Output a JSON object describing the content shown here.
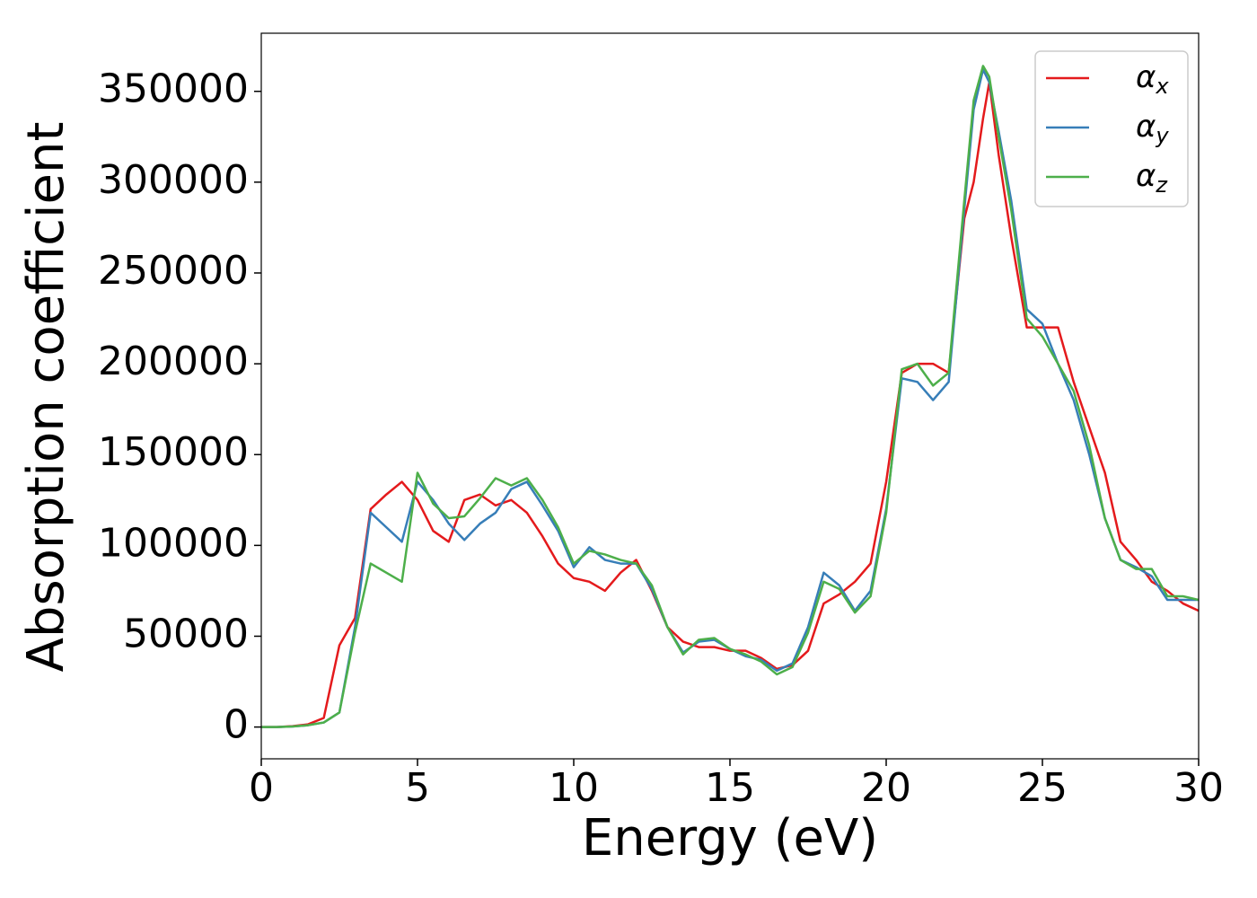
{
  "chart_data": {
    "type": "line",
    "xlabel": "Energy (eV)",
    "ylabel": "Absorption coefficient",
    "x": [
      0,
      0.5,
      1,
      1.5,
      2,
      2.5,
      3,
      3.5,
      4,
      4.5,
      5,
      5.5,
      6,
      6.5,
      7,
      7.5,
      8,
      8.5,
      9,
      9.5,
      10,
      10.5,
      11,
      11.5,
      12,
      12.5,
      13,
      13.5,
      14,
      14.5,
      15,
      15.5,
      16,
      16.5,
      17,
      17.5,
      18,
      18.5,
      19,
      19.5,
      20,
      20.5,
      21,
      21.5,
      22,
      22.5,
      22.8,
      23.1,
      23.3,
      23.6,
      24,
      24.5,
      25,
      25.5,
      26,
      26.5,
      27,
      27.5,
      28,
      28.5,
      29,
      29.5,
      30
    ],
    "series": [
      {
        "name": "αx",
        "color": "#e41a1c",
        "values": [
          0,
          0,
          500,
          1500,
          5000,
          45000,
          60000,
          120000,
          128000,
          135000,
          125000,
          108000,
          102000,
          125000,
          128000,
          122000,
          125000,
          118000,
          105000,
          90000,
          82000,
          80000,
          75000,
          85000,
          92000,
          75000,
          55000,
          47000,
          44000,
          44000,
          42000,
          42000,
          38000,
          32000,
          34000,
          42000,
          68000,
          73000,
          80000,
          90000,
          135000,
          195000,
          200000,
          200000,
          195000,
          280000,
          300000,
          335000,
          355000,
          315000,
          270000,
          220000,
          220000,
          220000,
          190000,
          165000,
          140000,
          102000,
          92000,
          80000,
          75000,
          68000,
          64000
        ]
      },
      {
        "name": "αy",
        "color": "#377eb8",
        "values": [
          0,
          0,
          300,
          1000,
          2500,
          8000,
          55000,
          118000,
          110000,
          102000,
          135000,
          125000,
          112000,
          103000,
          112000,
          118000,
          131000,
          135000,
          122000,
          108000,
          88000,
          99000,
          92000,
          90000,
          90000,
          76000,
          55000,
          41000,
          47000,
          48000,
          43000,
          39000,
          37000,
          31000,
          35000,
          55000,
          85000,
          78000,
          64000,
          75000,
          120000,
          192000,
          190000,
          180000,
          190000,
          285000,
          340000,
          362000,
          355000,
          328000,
          290000,
          230000,
          222000,
          200000,
          180000,
          150000,
          115000,
          92000,
          88000,
          83000,
          70000,
          70000,
          70000
        ]
      },
      {
        "name": "αz",
        "color": "#4daf4a",
        "values": [
          0,
          0,
          300,
          1000,
          2500,
          8000,
          52000,
          90000,
          85000,
          80000,
          140000,
          123000,
          115000,
          116000,
          126000,
          137000,
          133000,
          137000,
          125000,
          110000,
          90000,
          97000,
          95000,
          92000,
          90000,
          78000,
          55000,
          40000,
          48000,
          49000,
          43000,
          40000,
          36000,
          29000,
          33000,
          52000,
          80000,
          76000,
          63000,
          72000,
          118000,
          197000,
          200000,
          188000,
          195000,
          290000,
          345000,
          364000,
          358000,
          325000,
          285000,
          225000,
          215000,
          200000,
          185000,
          155000,
          115000,
          92000,
          87000,
          87000,
          72000,
          72000,
          70000
        ]
      }
    ],
    "xlim": [
      0,
      30
    ],
    "xticks": [
      0,
      5,
      10,
      15,
      20,
      25,
      30
    ],
    "ylim": [
      -17500,
      382000
    ],
    "yticks": [
      0,
      50000,
      100000,
      150000,
      200000,
      250000,
      300000,
      350000
    ],
    "grid": false,
    "legend": "upper right"
  }
}
